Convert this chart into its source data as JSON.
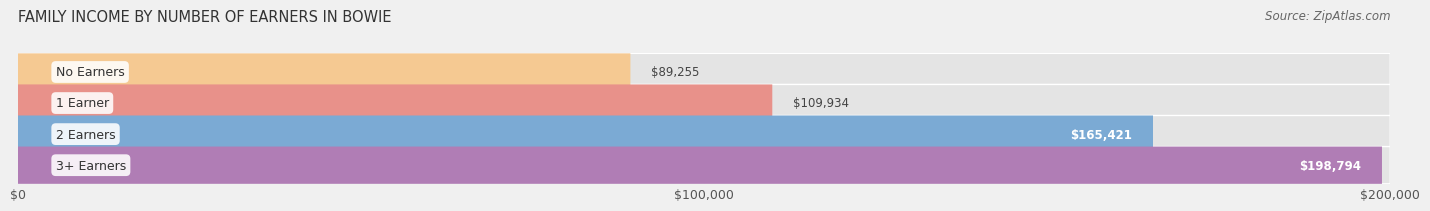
{
  "title": "FAMILY INCOME BY NUMBER OF EARNERS IN BOWIE",
  "source": "Source: ZipAtlas.com",
  "categories": [
    "No Earners",
    "1 Earner",
    "2 Earners",
    "3+ Earners"
  ],
  "values": [
    89255,
    109934,
    165421,
    198794
  ],
  "bar_colors": [
    "#f5c992",
    "#e8918a",
    "#7baad4",
    "#b07db5"
  ],
  "label_colors": [
    "#333333",
    "#333333",
    "#ffffff",
    "#ffffff"
  ],
  "xlim": [
    0,
    200000
  ],
  "xticks": [
    0,
    100000,
    200000
  ],
  "xtick_labels": [
    "$0",
    "$100,000",
    "$200,000"
  ],
  "value_labels": [
    "$89,255",
    "$109,934",
    "$165,421",
    "$198,794"
  ],
  "background_color": "#f0f0f0",
  "bar_bg_color": "#e4e4e4",
  "title_fontsize": 10.5,
  "source_fontsize": 8.5,
  "tick_fontsize": 9,
  "bar_height": 0.6
}
